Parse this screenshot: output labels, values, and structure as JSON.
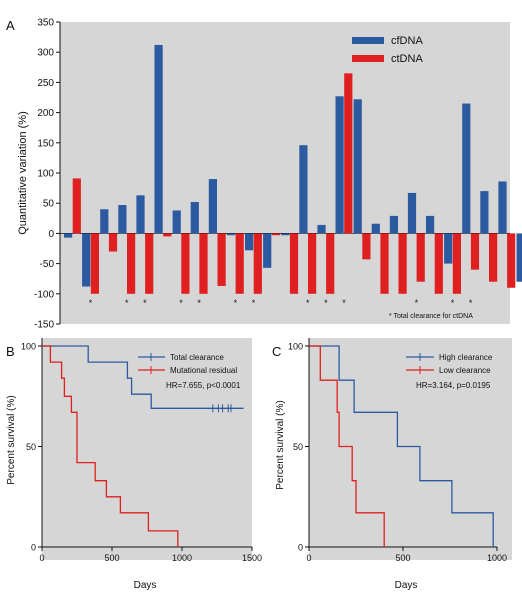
{
  "panels": {
    "a": "A",
    "b": "B",
    "c": "C"
  },
  "colors": {
    "blue": "#2c5aa0",
    "red": "#e02020",
    "plot_bg": "#d6d6d6"
  },
  "chart_data": [
    {
      "id": "A",
      "type": "bar",
      "ylabel": "Quantitative variation (%)",
      "ylim": [
        -150,
        350
      ],
      "yticks": [
        -150,
        -100,
        -50,
        0,
        50,
        100,
        150,
        200,
        250,
        300,
        350
      ],
      "ytick_labels": [
        "-150",
        "-100",
        "-50",
        "0",
        "50",
        "100",
        "150",
        "200",
        "250",
        "300",
        "350"
      ],
      "legend_position": "top-right",
      "series": [
        {
          "name": "cfDNA",
          "values": [
            -7,
            -88,
            40,
            47,
            63,
            312,
            38,
            52,
            90,
            -3,
            -28,
            -57,
            -3,
            146,
            14,
            227,
            222,
            16,
            29,
            67,
            29,
            -50,
            215,
            70,
            86,
            -80
          ]
        },
        {
          "name": "ctDNA",
          "values": [
            91,
            -100,
            -30,
            -100,
            -100,
            -5,
            -100,
            -100,
            -87,
            -100,
            -100,
            -3,
            -100,
            -100,
            -100,
            265,
            -43,
            -100,
            -100,
            -80,
            -100,
            -100,
            -60,
            -80,
            -90,
            null
          ]
        }
      ],
      "clearance_marks": [
        1,
        3,
        4,
        6,
        7,
        9,
        10,
        13,
        14,
        15,
        19,
        21,
        22
      ],
      "clearance_symbol": "*",
      "note": "* Total clearance for ctDNA"
    },
    {
      "id": "B",
      "type": "line",
      "xlabel": "Days",
      "ylabel": "Percent survival (%)",
      "xlim": [
        0,
        1500
      ],
      "ylim": [
        0,
        100
      ],
      "xticks": [
        0,
        500,
        1000,
        1500
      ],
      "xtick_labels": [
        "0",
        "500",
        "1000",
        "1500"
      ],
      "yticks": [
        0,
        50,
        100
      ],
      "ytick_labels": [
        "0",
        "50",
        "100"
      ],
      "annotation": "HR=7.655, p<0.0001",
      "series": [
        {
          "name": "Total clearance",
          "color": "blue",
          "points": [
            [
              0,
              100
            ],
            [
              330,
              100
            ],
            [
              330,
              92
            ],
            [
              610,
              92
            ],
            [
              610,
              84
            ],
            [
              640,
              84
            ],
            [
              640,
              76
            ],
            [
              780,
              76
            ],
            [
              780,
              69
            ],
            [
              1440,
              69
            ]
          ],
          "censored": [
            [
              1220,
              69
            ],
            [
              1260,
              69
            ],
            [
              1290,
              69
            ],
            [
              1330,
              69
            ],
            [
              1350,
              69
            ]
          ]
        },
        {
          "name": "Mutational residual",
          "color": "red",
          "points": [
            [
              0,
              100
            ],
            [
              60,
              100
            ],
            [
              60,
              92
            ],
            [
              140,
              92
            ],
            [
              140,
              84
            ],
            [
              160,
              84
            ],
            [
              160,
              75
            ],
            [
              210,
              75
            ],
            [
              210,
              67
            ],
            [
              250,
              67
            ],
            [
              250,
              42
            ],
            [
              380,
              42
            ],
            [
              380,
              33
            ],
            [
              460,
              33
            ],
            [
              460,
              25
            ],
            [
              560,
              25
            ],
            [
              560,
              17
            ],
            [
              760,
              17
            ],
            [
              760,
              8
            ],
            [
              970,
              8
            ],
            [
              970,
              0
            ]
          ],
          "censored": []
        }
      ]
    },
    {
      "id": "C",
      "type": "line",
      "xlabel": "Days",
      "ylabel": "Percent survival (%)",
      "xlim": [
        0,
        1000
      ],
      "ylim": [
        0,
        100
      ],
      "xticks": [
        0,
        500,
        1000
      ],
      "xtick_labels": [
        "0",
        "500",
        "1000"
      ],
      "yticks": [
        0,
        50,
        100
      ],
      "ytick_labels": [
        "0",
        "50",
        "100"
      ],
      "annotation": "HR=3.164, p=0.0195",
      "series": [
        {
          "name": "High clearance",
          "color": "blue",
          "points": [
            [
              0,
              100
            ],
            [
              160,
              100
            ],
            [
              160,
              83
            ],
            [
              240,
              83
            ],
            [
              240,
              67
            ],
            [
              470,
              67
            ],
            [
              470,
              50
            ],
            [
              590,
              50
            ],
            [
              590,
              33
            ],
            [
              760,
              33
            ],
            [
              760,
              17
            ],
            [
              980,
              17
            ],
            [
              980,
              0
            ]
          ],
          "censored": []
        },
        {
          "name": "Low clearance",
          "color": "red",
          "points": [
            [
              0,
              100
            ],
            [
              60,
              100
            ],
            [
              60,
              83
            ],
            [
              150,
              83
            ],
            [
              150,
              67
            ],
            [
              160,
              67
            ],
            [
              160,
              50
            ],
            [
              230,
              50
            ],
            [
              230,
              33
            ],
            [
              250,
              33
            ],
            [
              250,
              17
            ],
            [
              400,
              17
            ],
            [
              400,
              0
            ]
          ],
          "censored": []
        }
      ]
    }
  ]
}
